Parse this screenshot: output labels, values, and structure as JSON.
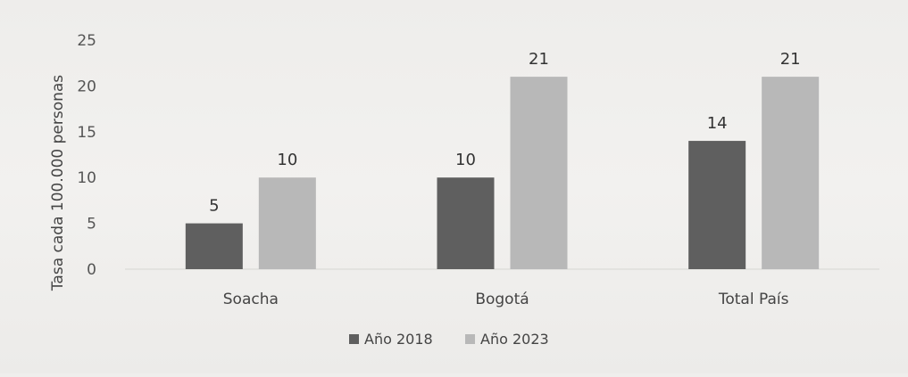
{
  "chart_data": {
    "type": "bar",
    "title": "",
    "ylabel": "Tasa cada 100.000 personas",
    "xlabel": "",
    "ylim": [
      0,
      25
    ],
    "yticks": [
      "0",
      "5",
      "10",
      "15",
      "20",
      "25"
    ],
    "categories": [
      "Soacha",
      "Bogotá",
      "Total País"
    ],
    "series": [
      {
        "name": "Año 2018",
        "values": [
          5,
          10,
          14
        ],
        "value_labels": [
          "5",
          "10",
          "14"
        ],
        "color": "#5f5f5f"
      },
      {
        "name": "Año 2023",
        "values": [
          10,
          21,
          21
        ],
        "value_labels": [
          "10",
          "21",
          "21"
        ],
        "color": "#b8b8b8"
      }
    ],
    "grid": false,
    "legend": "bottom"
  }
}
